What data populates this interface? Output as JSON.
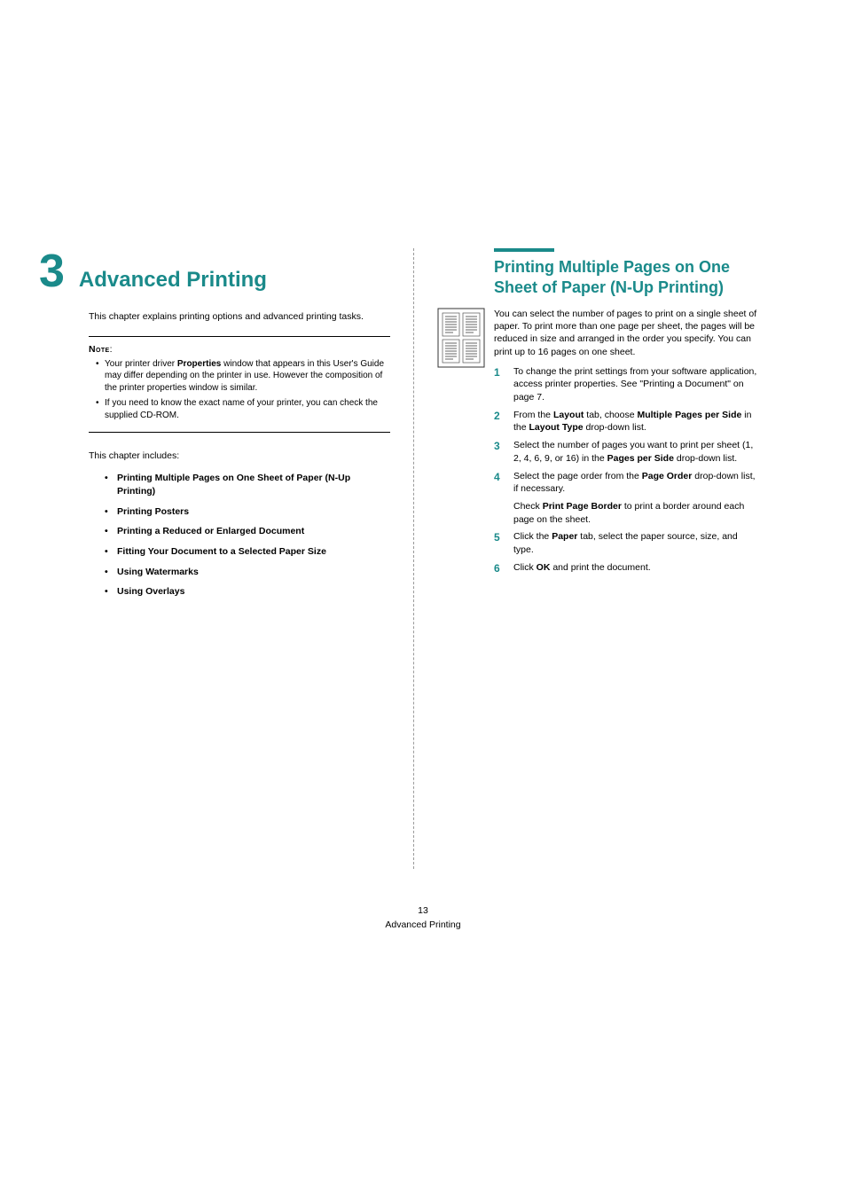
{
  "colors": {
    "accent": "#1a8a8a",
    "text": "#000000",
    "background": "#ffffff",
    "divider": "#999999"
  },
  "chapter": {
    "number": "3",
    "title": "Advanced Printing",
    "intro": "This chapter explains printing options and advanced printing tasks."
  },
  "note": {
    "label": "Note",
    "colon": ":",
    "items": [
      {
        "pre": "Your printer driver ",
        "bold": "Properties",
        "post": " window that appears in this User's Guide may differ depending on the printer in use. However the composition of the printer properties window is similar."
      },
      {
        "pre": "If you need to know the exact name of your printer, you can check the supplied CD-ROM.",
        "bold": "",
        "post": ""
      }
    ]
  },
  "includes": {
    "label": "This chapter includes:",
    "items": [
      "Printing Multiple Pages on One Sheet of Paper (N-Up Printing)",
      "Printing Posters",
      "Printing a Reduced or Enlarged Document",
      "Fitting Your Document to a Selected Paper Size",
      "Using Watermarks",
      "Using Overlays"
    ]
  },
  "section": {
    "title": "Printing Multiple Pages on One Sheet of Paper (N-Up Printing)",
    "intro": "You can select the number of pages to print on a single sheet of paper. To print more than one page per sheet, the pages will be reduced in size and arranged in the order you specify. You can print up to 16 pages on one sheet.",
    "steps": [
      {
        "n": "1",
        "html": "To change the print settings from your software application, access printer properties. See \"Printing a Document\" on page 7."
      },
      {
        "n": "2",
        "html": "From the <b>Layout</b> tab, choose <b>Multiple Pages per Side</b> in the <b>Layout Type</b> drop-down list."
      },
      {
        "n": "3",
        "html": "Select the number of pages you want to print per sheet (1, 2, 4, 6, 9, or 16) in the <b>Pages per Side</b> drop-down list."
      },
      {
        "n": "4",
        "html": "Select the page order from the <b>Page Order</b> drop-down list, if necessary."
      },
      {
        "n": "4sub",
        "html": "Check <b>Print Page Border</b> to print a border around each page on the sheet."
      },
      {
        "n": "5",
        "html": "Click the <b>Paper</b> tab, select the paper source, size, and type."
      },
      {
        "n": "6",
        "html": "Click <b>OK</b> and print the document."
      }
    ]
  },
  "footer": {
    "page": "13",
    "label": "Advanced Printing"
  }
}
